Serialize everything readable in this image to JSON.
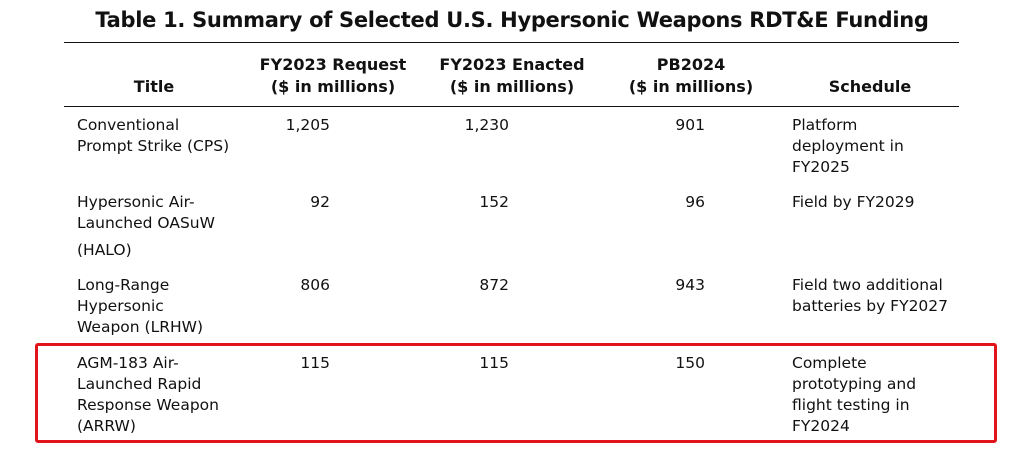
{
  "title": "Table 1. Summary of Selected U.S. Hypersonic Weapons RDT&E Funding",
  "headers": {
    "title": "Title",
    "request_line1": "FY2023 Request",
    "request_line2": "($ in millions)",
    "enacted_line1": "FY2023 Enacted",
    "enacted_line2": "($ in millions)",
    "pb_line1": "PB2024",
    "pb_line2": "($ in millions)",
    "schedule": "Schedule"
  },
  "rows": [
    {
      "title_lines": [
        "Conventional",
        "Prompt Strike (CPS)"
      ],
      "request": "1,205",
      "enacted": "1,230",
      "pb2024": "901",
      "schedule_lines": [
        "Platform",
        "deployment in",
        "FY2025"
      ]
    },
    {
      "title_lines": [
        "Hypersonic Air-",
        "Launched OASuW",
        "(HALO)"
      ],
      "request": "92",
      "enacted": "152",
      "pb2024": "96",
      "schedule_lines": [
        "Field by FY2029"
      ]
    },
    {
      "title_lines": [
        "Long-Range",
        "Hypersonic",
        "Weapon (LRHW)"
      ],
      "request": "806",
      "enacted": "872",
      "pb2024": "943",
      "schedule_lines": [
        "Field two additional",
        "batteries by FY2027"
      ]
    },
    {
      "title_lines": [
        "AGM-183 Air-",
        "Launched Rapid",
        "Response Weapon",
        "(ARRW)"
      ],
      "request": "115",
      "enacted": "115",
      "pb2024": "150",
      "schedule_lines": [
        "Complete",
        "prototyping and",
        "flight testing in",
        "FY2024"
      ]
    }
  ],
  "colors": {
    "highlight_border": "#e0141a",
    "text": "#111111",
    "rule": "#111111"
  }
}
